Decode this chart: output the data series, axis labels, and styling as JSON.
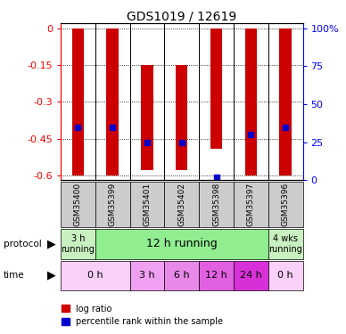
{
  "title": "GDS1019 / 12619",
  "samples": [
    "GSM35400",
    "GSM35399",
    "GSM35401",
    "GSM35402",
    "GSM35398",
    "GSM35397",
    "GSM35396"
  ],
  "log_ratios": [
    -0.6,
    -0.6,
    -0.58,
    -0.58,
    -0.49,
    -0.6,
    -0.6
  ],
  "log_ratio_tops": [
    0.0,
    0.0,
    -0.15,
    -0.15,
    0.0,
    0.0,
    0.0
  ],
  "percentile_ranks": [
    35,
    35,
    25,
    25,
    2,
    30,
    35
  ],
  "left_yaxis_ticks": [
    0,
    -0.15,
    -0.3,
    -0.45,
    -0.6
  ],
  "right_yaxis_labels": [
    "100%",
    "75",
    "50",
    "25",
    "0"
  ],
  "right_yaxis_pcts": [
    100,
    75,
    50,
    25,
    0
  ],
  "ylim": [
    -0.62,
    0.02
  ],
  "bar_color": "#cc0000",
  "dot_color": "#0000cc",
  "sample_bg": "#cccccc",
  "prot_segs": [
    [
      0,
      1,
      "#c8f0c0",
      "3 h\nrunning",
      7
    ],
    [
      1,
      6,
      "#90ee90",
      "12 h running",
      9
    ],
    [
      6,
      7,
      "#c8f0c0",
      "4 wks\nrunning",
      7
    ]
  ],
  "time_segs": [
    [
      0,
      2,
      "#f8d0f8",
      "0 h",
      8
    ],
    [
      2,
      3,
      "#f0a0f0",
      "3 h",
      8
    ],
    [
      3,
      4,
      "#e888e8",
      "6 h",
      8
    ],
    [
      4,
      5,
      "#e060e0",
      "12 h",
      8
    ],
    [
      5,
      6,
      "#d830d8",
      "24 h",
      8
    ],
    [
      6,
      7,
      "#f8d0f8",
      "0 h",
      8
    ]
  ]
}
